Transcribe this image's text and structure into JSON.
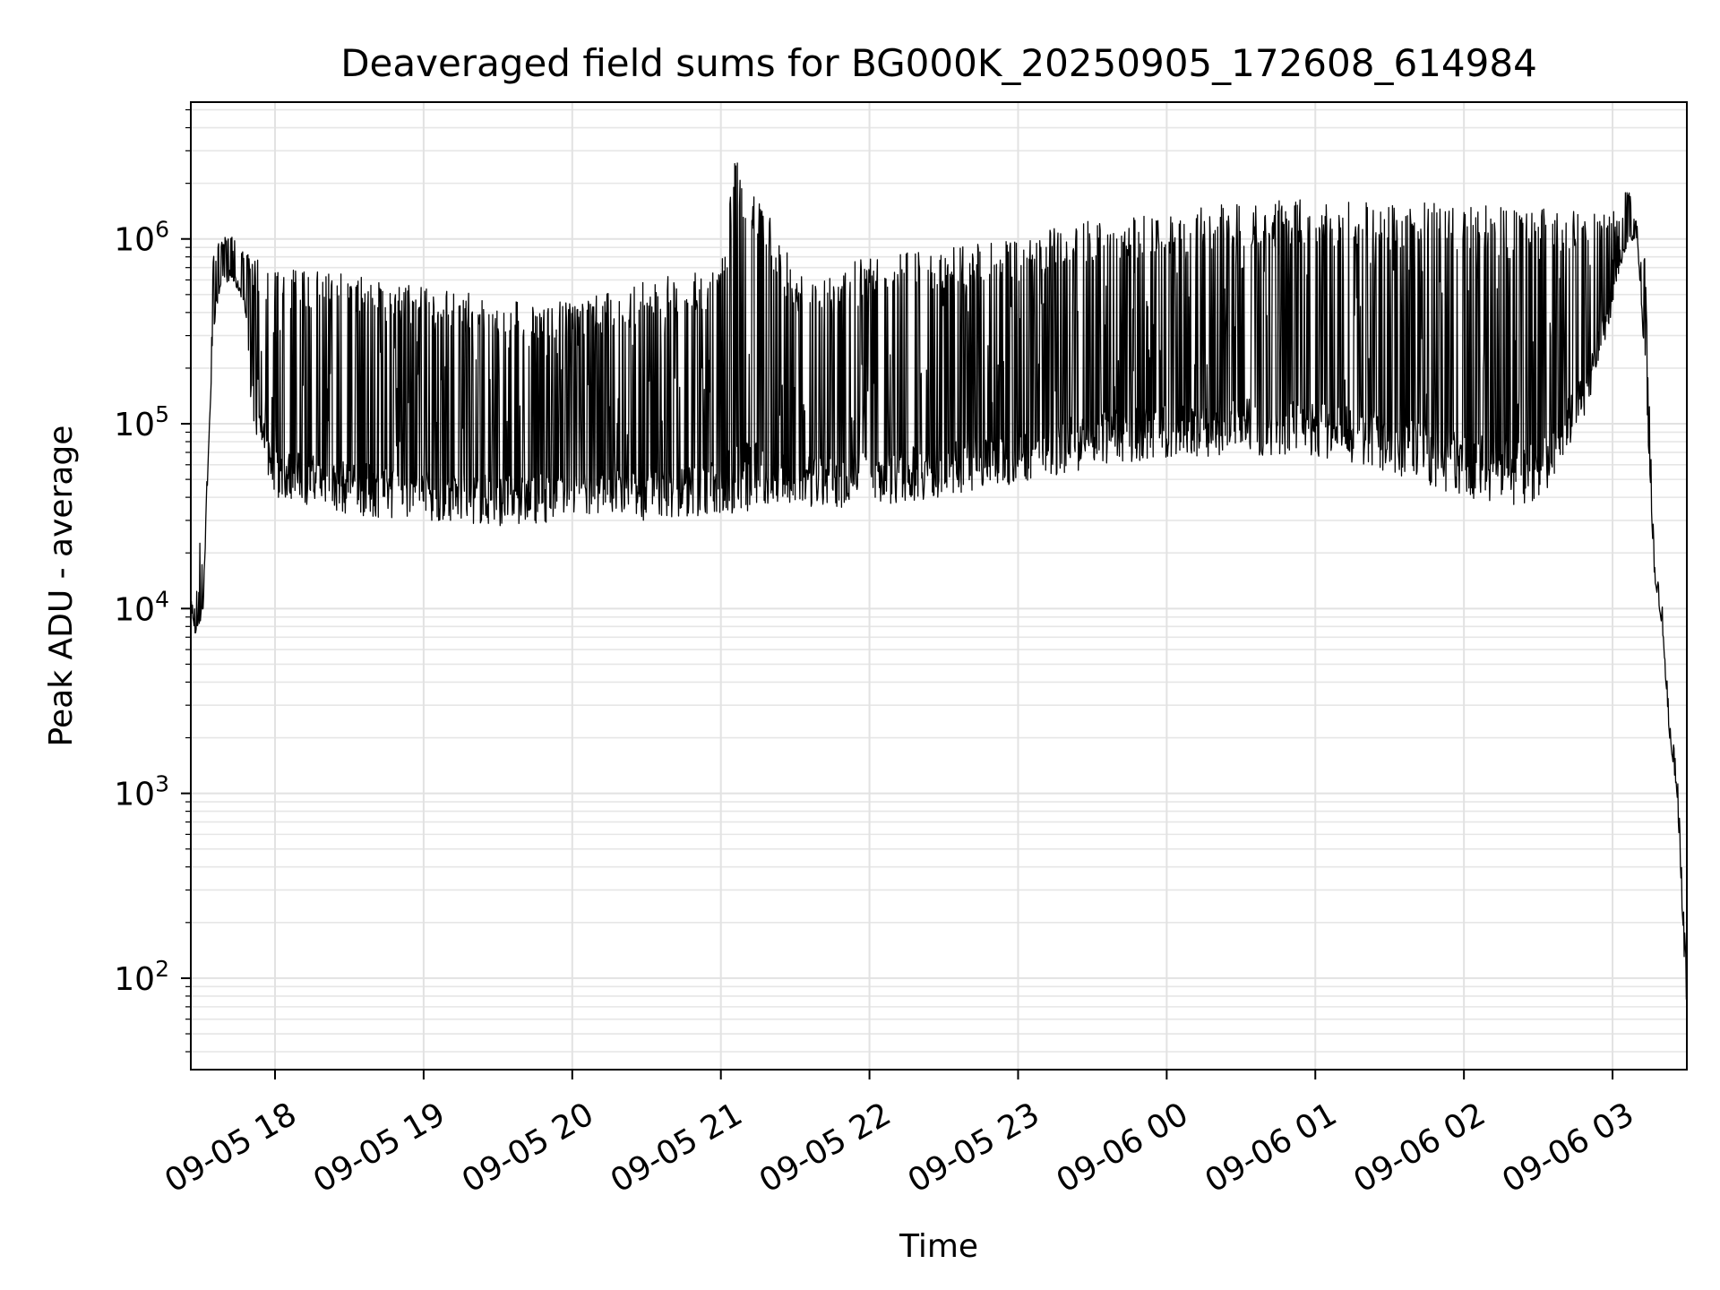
{
  "chart_data": {
    "type": "line",
    "title": "Deaveraged field sums for BG000K_20250905_172608_614984",
    "xlabel": "Time",
    "ylabel": "Peak ADU - average",
    "yscale": "log",
    "ylim": [
      32,
      5500000
    ],
    "xlim": [
      "2025-09-05 17:26",
      "2025-09-06 03:30"
    ],
    "grid": true,
    "legend": "none",
    "line_color": "#000000",
    "x_ticks": [
      {
        "value": "2025-09-05 18:00",
        "label": "09-05 18"
      },
      {
        "value": "2025-09-05 19:00",
        "label": "09-05 19"
      },
      {
        "value": "2025-09-05 20:00",
        "label": "09-05 20"
      },
      {
        "value": "2025-09-05 21:00",
        "label": "09-05 21"
      },
      {
        "value": "2025-09-05 22:00",
        "label": "09-05 22"
      },
      {
        "value": "2025-09-05 23:00",
        "label": "09-05 23"
      },
      {
        "value": "2025-09-06 00:00",
        "label": "09-06 00"
      },
      {
        "value": "2025-09-06 01:00",
        "label": "09-06 01"
      },
      {
        "value": "2025-09-06 02:00",
        "label": "09-06 02"
      },
      {
        "value": "2025-09-06 03:00",
        "label": "09-06 03"
      }
    ],
    "y_ticks": [
      {
        "value": 100,
        "base": "10",
        "exp": "2"
      },
      {
        "value": 1000,
        "base": "10",
        "exp": "3"
      },
      {
        "value": 10000,
        "base": "10",
        "exp": "4"
      },
      {
        "value": 100000,
        "base": "10",
        "exp": "5"
      },
      {
        "value": 1000000,
        "base": "10",
        "exp": "6"
      }
    ],
    "series": [
      {
        "x": [
          "2025-09-05 17:26",
          "2025-09-05 17:28",
          "2025-09-05 17:30",
          "2025-09-05 17:31",
          "2025-09-05 17:33",
          "2025-09-05 17:35",
          "2025-09-05 17:38",
          "2025-09-05 17:42",
          "2025-09-05 17:46",
          "2025-09-05 17:48",
          "2025-09-05 17:50",
          "2025-09-05 17:55",
          "2025-09-05 18:00",
          "2025-09-05 18:30",
          "2025-09-05 19:00",
          "2025-09-05 19:30",
          "2025-09-05 20:00",
          "2025-09-05 20:30",
          "2025-09-05 21:00",
          "2025-09-05 21:06",
          "2025-09-05 21:30",
          "2025-09-05 22:00",
          "2025-09-05 22:30",
          "2025-09-05 23:00",
          "2025-09-05 23:30",
          "2025-09-06 00:00",
          "2025-09-06 00:30",
          "2025-09-06 01:00",
          "2025-09-06 01:30",
          "2025-09-06 02:00",
          "2025-09-06 02:30",
          "2025-09-06 02:50",
          "2025-09-06 03:00",
          "2025-09-06 03:02",
          "2025-09-06 03:06",
          "2025-09-06 03:10",
          "2025-09-06 03:13",
          "2025-09-06 03:17",
          "2025-09-06 03:20",
          "2025-09-06 03:23",
          "2025-09-06 03:26",
          "2025-09-06 03:28",
          "2025-09-06 03:30"
        ],
        "lower": [
          10000,
          7000,
          8000,
          10000,
          60000,
          300000,
          550000,
          600000,
          500000,
          400000,
          120000,
          60000,
          40000,
          32000,
          30000,
          28000,
          30000,
          30000,
          32000,
          32000,
          34000,
          36000,
          40000,
          48000,
          58000,
          65000,
          68000,
          65000,
          55000,
          40000,
          35000,
          120000,
          400000,
          600000,
          900000,
          1000000,
          200000,
          14000,
          8000,
          2000,
          1000,
          250,
          60
        ],
        "upper": [
          11000,
          11000,
          28000,
          12000,
          100000,
          800000,
          1000000,
          1100000,
          900000,
          850000,
          800000,
          750000,
          700000,
          650000,
          550000,
          500000,
          450000,
          600000,
          700000,
          3000000,
          700000,
          800000,
          900000,
          1000000,
          1300000,
          1400000,
          1600000,
          1650000,
          1600000,
          1550000,
          1500000,
          1500000,
          1500000,
          1300000,
          2000000,
          1200000,
          800000,
          17000,
          11000,
          2500,
          1400,
          400,
          100
        ]
      }
    ]
  }
}
